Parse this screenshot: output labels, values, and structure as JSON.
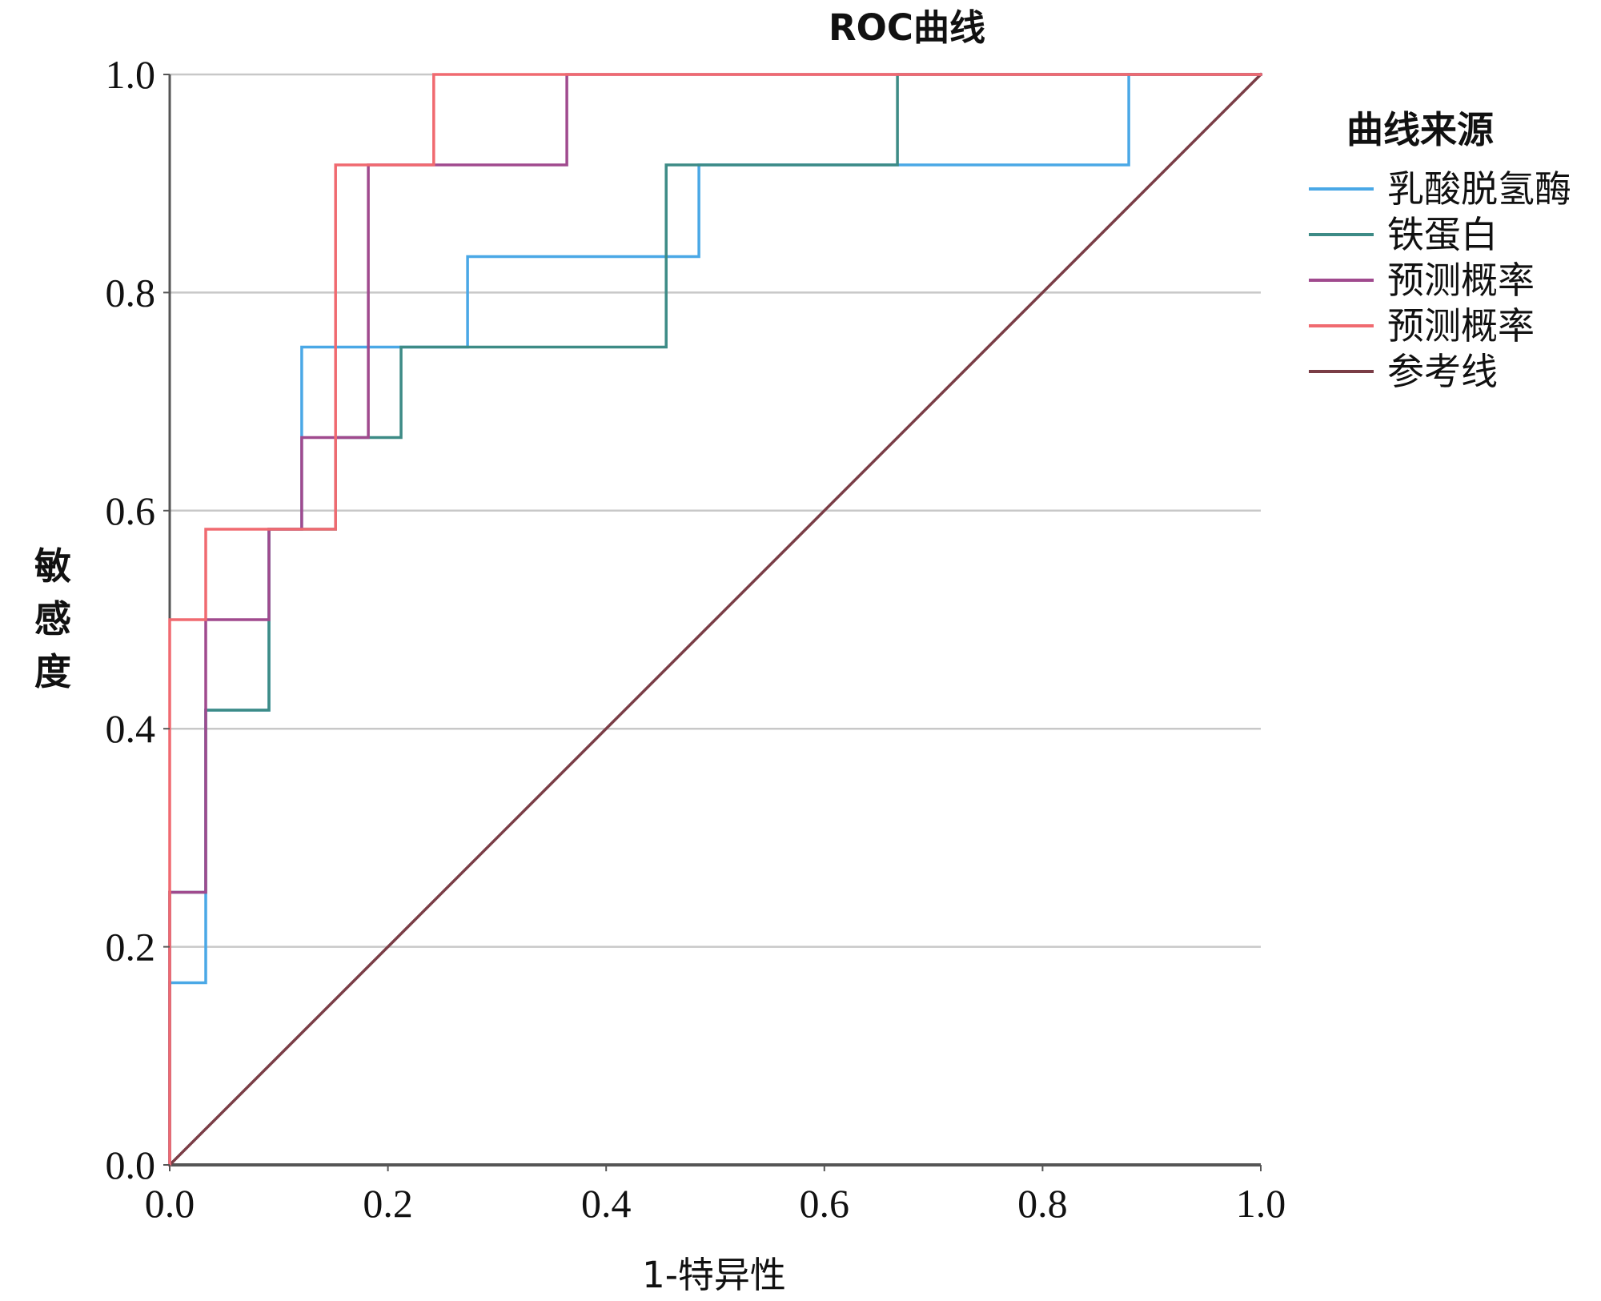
{
  "chart_data": {
    "type": "line",
    "title": "ROC曲线",
    "xlabel": "1-特异性",
    "ylabel": "敏感度",
    "xlim": [
      0.0,
      1.0
    ],
    "ylim": [
      0.0,
      1.0
    ],
    "xticks": [
      "0.0",
      "0.2",
      "0.4",
      "0.6",
      "0.8",
      "1.0"
    ],
    "yticks": [
      "0.0",
      "0.2",
      "0.4",
      "0.6",
      "0.8",
      "1.0"
    ],
    "grid": "horizontal",
    "legend": {
      "title": "曲线来源",
      "position": "right"
    },
    "series": [
      {
        "name": "乳酸脱氢酶",
        "color": "#4aa8e6",
        "points": [
          [
            0.0,
            0.0
          ],
          [
            0.0,
            0.167
          ],
          [
            0.033,
            0.167
          ],
          [
            0.033,
            0.25
          ],
          [
            0.033,
            0.417
          ],
          [
            0.091,
            0.417
          ],
          [
            0.091,
            0.583
          ],
          [
            0.121,
            0.583
          ],
          [
            0.121,
            0.75
          ],
          [
            0.273,
            0.75
          ],
          [
            0.273,
            0.833
          ],
          [
            0.485,
            0.833
          ],
          [
            0.485,
            0.917
          ],
          [
            0.879,
            0.917
          ],
          [
            0.879,
            1.0
          ],
          [
            1.0,
            1.0
          ]
        ]
      },
      {
        "name": "铁蛋白",
        "color": "#3d8b86",
        "points": [
          [
            0.0,
            0.0
          ],
          [
            0.0,
            0.25
          ],
          [
            0.033,
            0.25
          ],
          [
            0.033,
            0.417
          ],
          [
            0.091,
            0.417
          ],
          [
            0.091,
            0.583
          ],
          [
            0.152,
            0.583
          ],
          [
            0.152,
            0.667
          ],
          [
            0.212,
            0.667
          ],
          [
            0.212,
            0.75
          ],
          [
            0.455,
            0.75
          ],
          [
            0.455,
            0.917
          ],
          [
            0.667,
            0.917
          ],
          [
            0.667,
            1.0
          ],
          [
            1.0,
            1.0
          ]
        ]
      },
      {
        "name": "预测概率",
        "color": "#a04a8e",
        "points": [
          [
            0.0,
            0.0
          ],
          [
            0.0,
            0.25
          ],
          [
            0.033,
            0.25
          ],
          [
            0.033,
            0.5
          ],
          [
            0.091,
            0.5
          ],
          [
            0.091,
            0.583
          ],
          [
            0.121,
            0.583
          ],
          [
            0.121,
            0.667
          ],
          [
            0.182,
            0.667
          ],
          [
            0.182,
            0.917
          ],
          [
            0.364,
            0.917
          ],
          [
            0.364,
            1.0
          ],
          [
            1.0,
            1.0
          ]
        ]
      },
      {
        "name": "预测概率",
        "color": "#f06a70",
        "points": [
          [
            0.0,
            0.0
          ],
          [
            0.0,
            0.5
          ],
          [
            0.033,
            0.5
          ],
          [
            0.033,
            0.583
          ],
          [
            0.152,
            0.583
          ],
          [
            0.152,
            0.917
          ],
          [
            0.242,
            0.917
          ],
          [
            0.242,
            1.0
          ],
          [
            1.0,
            1.0
          ]
        ]
      },
      {
        "name": "参考线",
        "color": "#7a3d46",
        "points": [
          [
            0.0,
            0.0
          ],
          [
            1.0,
            1.0
          ]
        ]
      }
    ]
  }
}
